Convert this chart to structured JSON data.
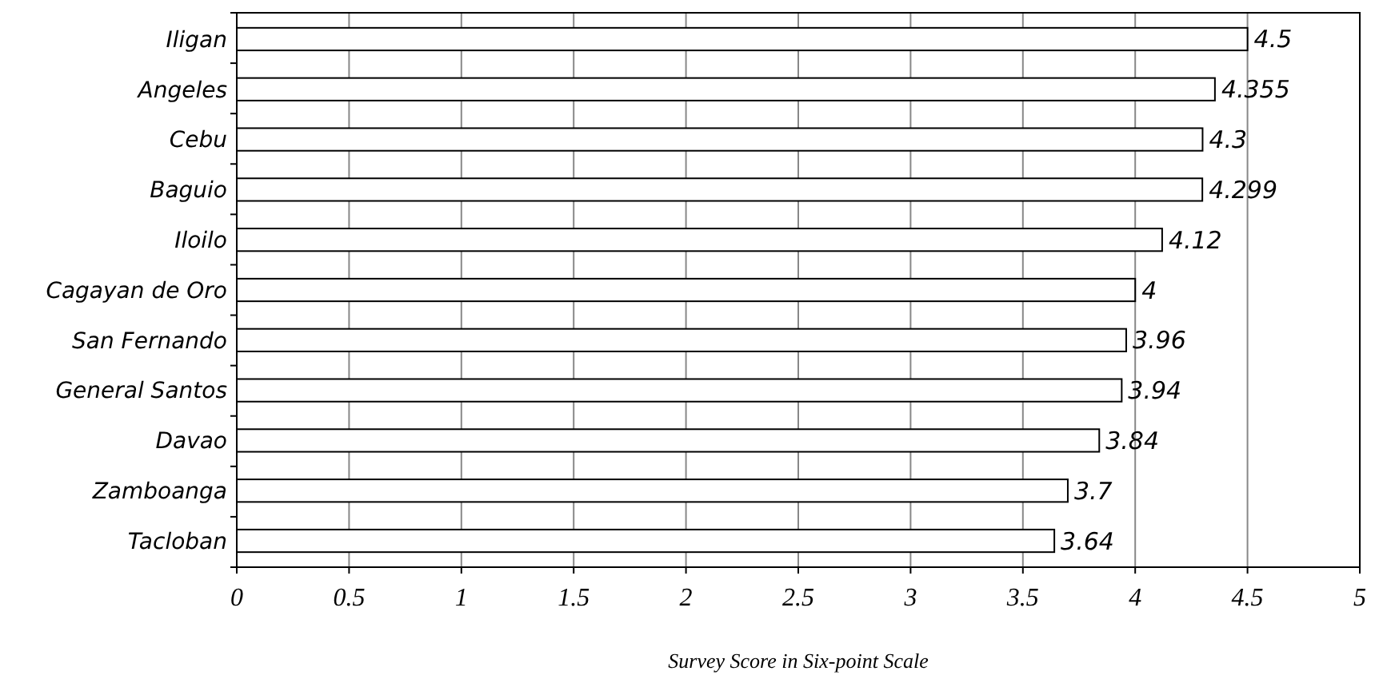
{
  "chart_data": {
    "type": "bar",
    "orientation": "horizontal",
    "xlabel": "Survey Score in Six-point Scale",
    "categories": [
      "Iligan",
      "Angeles",
      "Cebu",
      "Baguio",
      "Iloilo",
      "Cagayan de Oro",
      "San Fernando",
      "General Santos",
      "Davao",
      "Zamboanga",
      "Tacloban"
    ],
    "values": [
      4.5,
      4.355,
      4.3,
      4.299,
      4.12,
      4,
      3.96,
      3.94,
      3.84,
      3.7,
      3.64
    ],
    "color": "#ffffff",
    "data_labels": true,
    "grid": "x",
    "xlim": [
      0,
      5
    ],
    "xticks": [
      0,
      0.5,
      1,
      1.5,
      2,
      2.5,
      3,
      3.5,
      4,
      4.5,
      5
    ]
  }
}
